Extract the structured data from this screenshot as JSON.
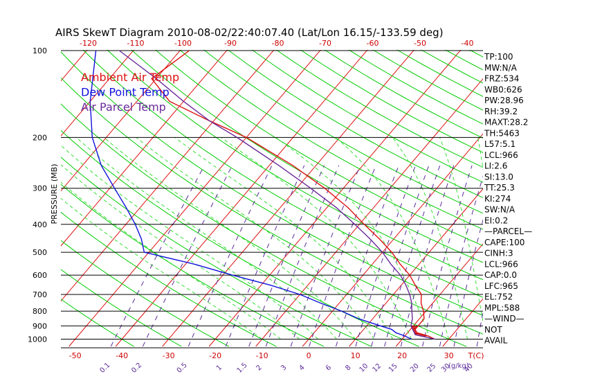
{
  "chart_data": {
    "type": "line",
    "title": "AIRS SkewT Diagram 2010-08-02/22:40:07.40 (Lat/Lon 16.15/-133.59 deg)",
    "ylabel": "PRESSURE (MB)",
    "y_scale": "log",
    "ylim": [
      1050,
      100
    ],
    "xlim_temperature_at_1000mb": [
      -55,
      40
    ],
    "bottom_temp_ticks": [
      "-50",
      "-40",
      "-30",
      "-20",
      "-10",
      "0",
      "10",
      "20",
      "30"
    ],
    "top_temp_ticks": [
      "-120",
      "-110",
      "-100",
      "-90",
      "-80",
      "-70",
      "-60",
      "-50",
      "-40"
    ],
    "pressure_ticks": [
      100,
      200,
      300,
      400,
      500,
      600,
      700,
      800,
      900,
      1000
    ],
    "temp_axis_label": "T(C)",
    "mixing_ratio_label": "(g/kg)",
    "mixing_ratio_ticks": [
      "0.1",
      "0.2",
      "0.5",
      "1",
      "1.5",
      "2",
      "3",
      "4",
      "6",
      "8",
      "10",
      "12",
      "15",
      "20",
      "25",
      "30",
      "40"
    ],
    "legend": [
      {
        "name": "Ambient Air Temp",
        "color": "#dd1111"
      },
      {
        "name": "Dew Point Temp",
        "color": "#1111dd"
      },
      {
        "name": "Air Parcel Temp",
        "color": "#6a2a9a"
      }
    ],
    "series": [
      {
        "name": "Ambient Air Temp",
        "color": "#dd1111",
        "points": [
          [
            1000,
            27
          ],
          [
            975,
            25
          ],
          [
            950,
            22
          ],
          [
            925,
            21
          ],
          [
            900,
            21
          ],
          [
            850,
            21
          ],
          [
            800,
            19.5
          ],
          [
            750,
            17.5
          ],
          [
            700,
            16
          ],
          [
            650,
            13
          ],
          [
            600,
            10
          ],
          [
            550,
            6
          ],
          [
            500,
            2
          ],
          [
            450,
            -3
          ],
          [
            400,
            -9
          ],
          [
            350,
            -15.5
          ],
          [
            300,
            -24
          ],
          [
            250,
            -35
          ],
          [
            200,
            -50
          ],
          [
            175,
            -61
          ],
          [
            150,
            -73
          ],
          [
            125,
            -81
          ],
          [
            100,
            -78
          ]
        ]
      },
      {
        "name": "Dew Point Temp",
        "color": "#1111dd",
        "points": [
          [
            1000,
            22
          ],
          [
            975,
            20
          ],
          [
            950,
            17.5
          ],
          [
            925,
            16
          ],
          [
            900,
            13
          ],
          [
            850,
            7
          ],
          [
            800,
            2
          ],
          [
            750,
            -4
          ],
          [
            700,
            -10
          ],
          [
            650,
            -18
          ],
          [
            600,
            -28
          ],
          [
            550,
            -38
          ],
          [
            500,
            -51
          ],
          [
            450,
            -54
          ],
          [
            400,
            -58
          ],
          [
            350,
            -63
          ],
          [
            300,
            -69
          ],
          [
            250,
            -76
          ],
          [
            200,
            -83
          ],
          [
            150,
            -90
          ],
          [
            100,
            -98
          ]
        ]
      },
      {
        "name": "Air Parcel Temp",
        "color": "#6a2a9a",
        "points": [
          [
            1000,
            27
          ],
          [
            965,
            22
          ],
          [
            900,
            19.5
          ],
          [
            850,
            18.5
          ],
          [
            800,
            17
          ],
          [
            750,
            15.5
          ],
          [
            700,
            13.5
          ],
          [
            650,
            11
          ],
          [
            600,
            8
          ],
          [
            550,
            4
          ],
          [
            500,
            0
          ],
          [
            450,
            -5
          ],
          [
            400,
            -11
          ],
          [
            350,
            -18
          ],
          [
            300,
            -27
          ],
          [
            250,
            -38
          ],
          [
            200,
            -52
          ],
          [
            175,
            -61
          ],
          [
            150,
            -70
          ],
          [
            125,
            -80
          ],
          [
            100,
            -93
          ]
        ]
      }
    ],
    "cape_shading_between_pressure": [
      975,
      900
    ],
    "parameters": [
      "TP:100",
      "MW:N/A",
      "FRZ:534",
      "WB0:626",
      "PW:28.96",
      "RH:39.2",
      "MAXT:28.2",
      "TH:5463",
      "L57:5.1",
      "LCL:966",
      "LI:2.6",
      "SI:13.0",
      "TT:25.3",
      "KI:274",
      "SW:N/A",
      "EI:0.2",
      "—PARCEL—",
      "CAPE:100",
      "CINH:3",
      "LCL:966",
      "CAP:0.0",
      "LFC:965",
      "EL:752",
      "MPL:588",
      "—WIND—",
      "NOT",
      "AVAIL"
    ]
  },
  "colors": {
    "isotherm": "#dd1111",
    "dry_adiabat": "#00cc00",
    "moist_adiabat": "#33dd33",
    "mixing_ratio": "#5a2a9a",
    "isobar": "#000000"
  }
}
